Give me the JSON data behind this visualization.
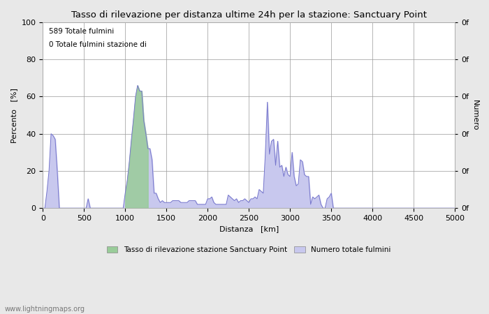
{
  "title": "Tasso di rilevazione per distanza ultime 24h per la stazione: Sanctuary Point",
  "xlabel": "Distanza   [km]",
  "ylabel_left": "Percento   [%]",
  "ylabel_right": "Numero",
  "annotation_line1": "589 Totale fulmini",
  "annotation_line2": "0 Totale fulmini stazione di",
  "xlim": [
    0,
    5000
  ],
  "ylim": [
    0,
    100
  ],
  "xticks": [
    0,
    500,
    1000,
    1500,
    2000,
    2500,
    3000,
    3500,
    4000,
    4500,
    5000
  ],
  "yticks_left": [
    0,
    20,
    40,
    60,
    80,
    100
  ],
  "bg_color": "#e8e8e8",
  "plot_bg_color": "#ffffff",
  "line_color": "#7777cc",
  "fill_color_blue": "#c8c8ee",
  "fill_color_green": "#99cc99",
  "legend_label_green": "Tasso di rilevazione stazione Sanctuary Point",
  "legend_label_blue": "Numero totale fulmini",
  "watermark": "www.lightningmaps.org",
  "distances": [
    0,
    25,
    50,
    75,
    100,
    125,
    150,
    175,
    200,
    225,
    250,
    275,
    300,
    325,
    350,
    375,
    400,
    425,
    450,
    475,
    500,
    525,
    550,
    575,
    600,
    625,
    650,
    675,
    700,
    725,
    750,
    775,
    800,
    825,
    850,
    875,
    900,
    925,
    950,
    975,
    1000,
    1025,
    1050,
    1075,
    1100,
    1125,
    1150,
    1175,
    1200,
    1225,
    1250,
    1275,
    1300,
    1325,
    1350,
    1375,
    1400,
    1425,
    1450,
    1475,
    1500,
    1525,
    1550,
    1575,
    1600,
    1625,
    1650,
    1675,
    1700,
    1725,
    1750,
    1775,
    1800,
    1825,
    1850,
    1875,
    1900,
    1925,
    1950,
    1975,
    2000,
    2025,
    2050,
    2075,
    2100,
    2125,
    2150,
    2175,
    2200,
    2225,
    2250,
    2275,
    2300,
    2325,
    2350,
    2375,
    2400,
    2425,
    2450,
    2475,
    2500,
    2525,
    2550,
    2575,
    2600,
    2625,
    2650,
    2675,
    2700,
    2725,
    2750,
    2775,
    2800,
    2825,
    2850,
    2875,
    2900,
    2925,
    2950,
    2975,
    3000,
    3025,
    3050,
    3075,
    3100,
    3125,
    3150,
    3175,
    3200,
    3225,
    3250,
    3275,
    3300,
    3325,
    3350,
    3375,
    3400,
    3425,
    3450,
    3475,
    3500,
    3525,
    3550,
    3575,
    3600,
    3625,
    3650,
    3675,
    3700,
    3725,
    3750,
    3775,
    3800,
    3825,
    3850,
    3875,
    3900,
    3925,
    3950,
    3975,
    4000,
    4025,
    4050,
    4075,
    4100,
    4125,
    4150,
    4175,
    4200,
    4225,
    4250,
    4275,
    4300,
    4325,
    4350,
    4375,
    4400,
    4425,
    4450,
    4475,
    4500,
    4525,
    4550,
    4575,
    4600,
    4625,
    4650,
    4675,
    4700,
    4725,
    4750,
    4775,
    4800,
    4825,
    4850,
    4875,
    4900,
    4925,
    4950,
    4975,
    5000
  ],
  "values": [
    0,
    0,
    9,
    20,
    40,
    39,
    37,
    20,
    0,
    0,
    0,
    0,
    0,
    0,
    0,
    0,
    0,
    0,
    0,
    0,
    0,
    0,
    5,
    0,
    0,
    0,
    0,
    0,
    0,
    0,
    0,
    0,
    0,
    0,
    0,
    0,
    0,
    0,
    0,
    0,
    8,
    15,
    25,
    37,
    48,
    60,
    66,
    63,
    63,
    47,
    40,
    32,
    32,
    26,
    8,
    8,
    5,
    3,
    4,
    3,
    3,
    3,
    3,
    4,
    4,
    4,
    4,
    3,
    3,
    3,
    3,
    4,
    4,
    4,
    4,
    2,
    2,
    2,
    2,
    2,
    5,
    5,
    6,
    3,
    2,
    2,
    2,
    2,
    2,
    2,
    7,
    6,
    5,
    4,
    5,
    3,
    4,
    4,
    5,
    4,
    3,
    5,
    5,
    6,
    5,
    10,
    9,
    8,
    29,
    57,
    29,
    36,
    37,
    23,
    36,
    22,
    23,
    17,
    22,
    18,
    17,
    30,
    17,
    12,
    13,
    26,
    25,
    18,
    17,
    17,
    2,
    6,
    5,
    6,
    7,
    2,
    0,
    0,
    5,
    6,
    8,
    0,
    0,
    0,
    0,
    0,
    0,
    0,
    0,
    0,
    0,
    0,
    0,
    0,
    0,
    0,
    0,
    0,
    0,
    0,
    0,
    0,
    0,
    0,
    0,
    0,
    0,
    0,
    0,
    0,
    0,
    0,
    0,
    0,
    0,
    0,
    0,
    0,
    0,
    0,
    0,
    0,
    0,
    0,
    0,
    0,
    0,
    0,
    0,
    0,
    0,
    0,
    0,
    0,
    0,
    0,
    0,
    0,
    0,
    0,
    0
  ],
  "green_fill_start": 1000,
  "green_fill_end": 1275
}
